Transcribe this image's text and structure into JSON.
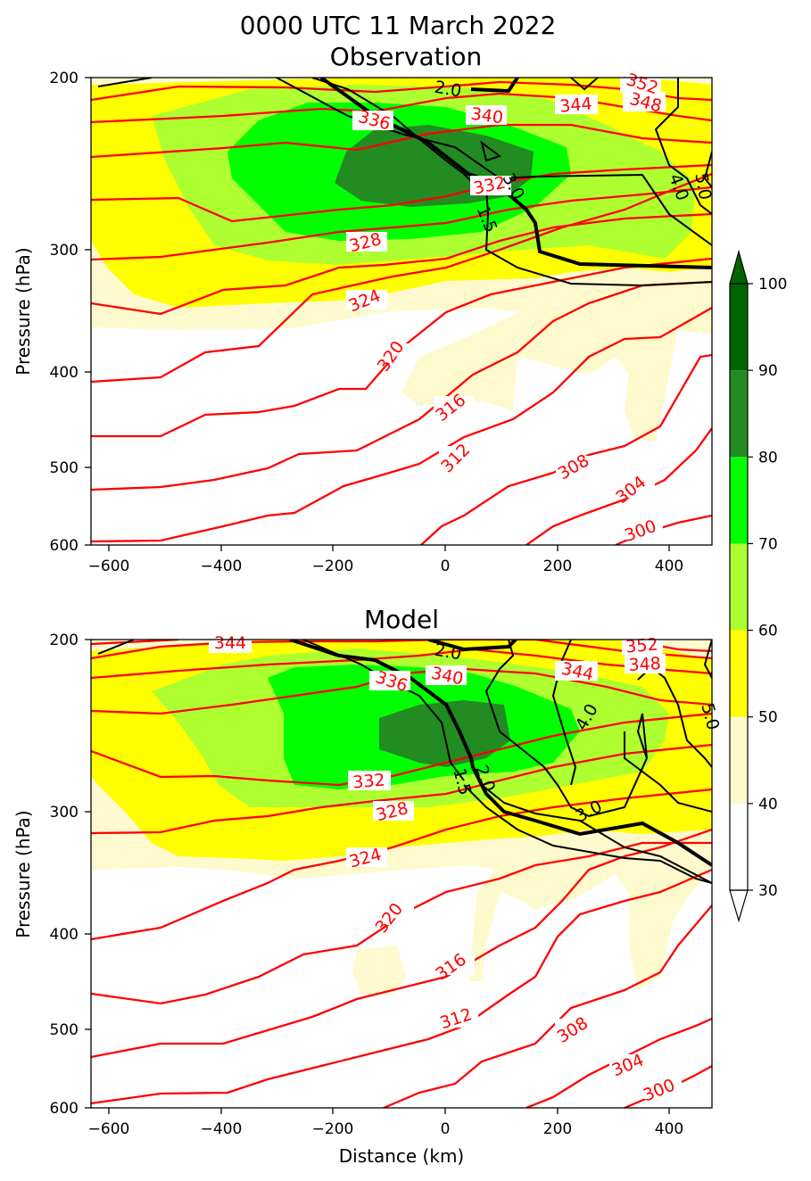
{
  "figure": {
    "title_line1": "0000 UTC 11 March 2022",
    "title_line2": "Observation"
  },
  "chart_data": [
    {
      "type": "contour",
      "title": "Observation",
      "xlabel": "",
      "ylabel": "Pressure (hPa)",
      "xlim": [
        -630,
        475
      ],
      "ylim": [
        600,
        200
      ],
      "yscale": "log",
      "xticks": [
        "−600",
        "−400",
        "−200",
        "0",
        "200",
        "400"
      ],
      "yticks": [
        "200",
        "300",
        "400",
        "500",
        "600"
      ],
      "theta_contours_K": {
        "color": "#ff0000",
        "levels": [
          300,
          304,
          308,
          312,
          316,
          320,
          324,
          328,
          332,
          336,
          340,
          344,
          348,
          352
        ],
        "labels": [
          "300",
          "304",
          "308",
          "312",
          "316",
          "320",
          "324",
          "328",
          "332",
          "336",
          "340",
          "344",
          "348",
          "352"
        ]
      },
      "pv_contours": {
        "color": "#000000",
        "labels": [
          "1.5",
          "2.0",
          "3.0",
          "4.0",
          "5.0"
        ]
      },
      "filled_levels": [
        40,
        50,
        60,
        70,
        80,
        90,
        100
      ]
    },
    {
      "type": "contour",
      "title": "Model",
      "xlabel": "Distance (km)",
      "ylabel": "Pressure (hPa)",
      "xlim": [
        -630,
        475
      ],
      "ylim": [
        600,
        200
      ],
      "yscale": "log",
      "xticks": [
        "−600",
        "−400",
        "−200",
        "0",
        "200",
        "400"
      ],
      "yticks": [
        "200",
        "300",
        "400",
        "500",
        "600"
      ],
      "theta_contours_K": {
        "color": "#ff0000",
        "levels": [
          300,
          304,
          308,
          312,
          316,
          320,
          324,
          328,
          332,
          336,
          340,
          344,
          348,
          352
        ],
        "labels": [
          "300",
          "304",
          "308",
          "312",
          "316",
          "320",
          "324",
          "328",
          "332",
          "336",
          "340",
          "344",
          "348",
          "352"
        ]
      },
      "pv_contours": {
        "color": "#000000",
        "labels": [
          "1.5",
          "2.0",
          "3.0",
          "4.0",
          "5.0"
        ]
      },
      "filled_levels": [
        40,
        50,
        60,
        70,
        80,
        90,
        100
      ]
    }
  ],
  "colorbar": {
    "ticks": [
      "30",
      "40",
      "50",
      "60",
      "70",
      "80",
      "90",
      "100"
    ],
    "bands": [
      {
        "from": 30,
        "to": 40,
        "color": "#ffffff"
      },
      {
        "from": 40,
        "to": 50,
        "color": "#fffacd"
      },
      {
        "from": 50,
        "to": 60,
        "color": "#ffff00"
      },
      {
        "from": 60,
        "to": 70,
        "color": "#adff2f"
      },
      {
        "from": 70,
        "to": 80,
        "color": "#00ff00"
      },
      {
        "from": 80,
        "to": 90,
        "color": "#228b22"
      },
      {
        "from": 90,
        "to": 100,
        "color": "#006400"
      }
    ],
    "extend": "both"
  }
}
